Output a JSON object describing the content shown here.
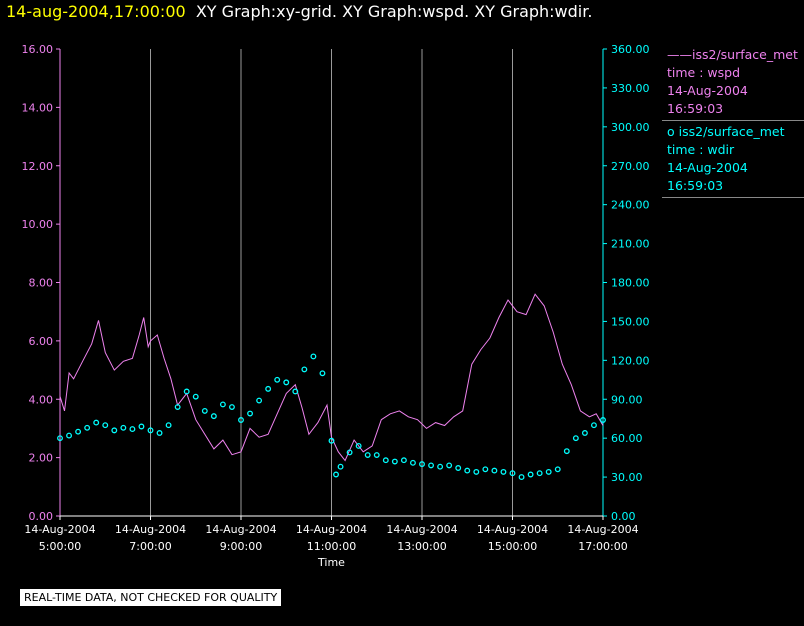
{
  "header": {
    "datetime": "14-aug-2004,17:00:00",
    "graphs": "XY Graph:xy-grid.  XY Graph:wspd.  XY Graph:wdir."
  },
  "legend": [
    {
      "name": "iss2/surface_met",
      "symbol": "——",
      "lines": [
        "time : wspd",
        "14-Aug-2004",
        "16:59:03"
      ],
      "color": "#ee82ee"
    },
    {
      "name": "iss2/surface_met",
      "symbol": "o",
      "lines": [
        "time : wdir",
        "14-Aug-2004",
        "16:59:03"
      ],
      "color": "#00ffff"
    }
  ],
  "footer_note": "REAL-TIME DATA, NOT CHECKED FOR QUALITY",
  "colors": {
    "wspd": "#ee82ee",
    "wdir": "#00ffff",
    "grid": "#9a9a9a",
    "axis": "#ffffff",
    "header_time": "#ffff00"
  },
  "chart_data": {
    "type": "line",
    "xlabel": "Time",
    "x_ticks": [
      [
        "14-Aug-2004",
        "5:00:00"
      ],
      [
        "14-Aug-2004",
        "7:00:00"
      ],
      [
        "14-Aug-2004",
        "9:00:00"
      ],
      [
        "14-Aug-2004",
        "11:00:00"
      ],
      [
        "14-Aug-2004",
        "13:00:00"
      ],
      [
        "14-Aug-2004",
        "15:00:00"
      ],
      [
        "14-Aug-2004",
        "17:00:00"
      ]
    ],
    "xlim_hours": [
      5.0,
      17.0
    ],
    "y_left": {
      "ticks": [
        "0.00",
        "2.00",
        "4.00",
        "6.00",
        "8.00",
        "10.00",
        "12.00",
        "14.00",
        "16.00"
      ],
      "ylim": [
        0,
        16
      ]
    },
    "y_right": {
      "ticks": [
        "0.00",
        "30.00",
        "60.00",
        "90.00",
        "120.00",
        "150.00",
        "180.00",
        "210.00",
        "240.00",
        "270.00",
        "300.00",
        "330.00",
        "360.00"
      ],
      "ylim": [
        0,
        360
      ]
    },
    "grid": "vertical",
    "series": [
      {
        "name": "wspd",
        "style": "line",
        "axis": "left",
        "x": [
          5.0,
          5.1,
          5.2,
          5.3,
          5.5,
          5.7,
          5.85,
          6.0,
          6.2,
          6.4,
          6.6,
          6.75,
          6.85,
          6.95,
          7.0,
          7.15,
          7.3,
          7.45,
          7.6,
          7.8,
          8.0,
          8.2,
          8.4,
          8.6,
          8.8,
          9.0,
          9.2,
          9.4,
          9.6,
          9.8,
          10.0,
          10.2,
          10.35,
          10.5,
          10.7,
          10.9,
          11.0,
          11.15,
          11.3,
          11.5,
          11.7,
          11.9,
          12.1,
          12.3,
          12.5,
          12.7,
          12.9,
          13.1,
          13.3,
          13.5,
          13.7,
          13.9,
          14.1,
          14.3,
          14.5,
          14.7,
          14.9,
          15.1,
          15.3,
          15.5,
          15.7,
          15.9,
          16.1,
          16.3,
          16.5,
          16.7,
          16.85,
          17.0
        ],
        "values": [
          4.1,
          3.6,
          4.9,
          4.7,
          5.3,
          5.9,
          6.7,
          5.6,
          5.0,
          5.3,
          5.4,
          6.2,
          6.8,
          5.8,
          6.0,
          6.2,
          5.4,
          4.7,
          3.8,
          4.2,
          3.3,
          2.8,
          2.3,
          2.6,
          2.1,
          2.2,
          3.0,
          2.7,
          2.8,
          3.5,
          4.2,
          4.5,
          3.7,
          2.8,
          3.2,
          3.8,
          2.7,
          2.2,
          1.9,
          2.6,
          2.2,
          2.4,
          3.3,
          3.5,
          3.6,
          3.4,
          3.3,
          3.0,
          3.2,
          3.1,
          3.4,
          3.6,
          5.2,
          5.7,
          6.1,
          6.8,
          7.4,
          7.0,
          6.9,
          7.6,
          7.2,
          6.3,
          5.2,
          4.5,
          3.6,
          3.4,
          3.5,
          3.1
        ]
      },
      {
        "name": "wdir",
        "style": "scatter",
        "axis": "right",
        "x": [
          5.0,
          5.2,
          5.4,
          5.6,
          5.8,
          6.0,
          6.2,
          6.4,
          6.6,
          6.8,
          7.0,
          7.2,
          7.4,
          7.6,
          7.8,
          8.0,
          8.2,
          8.4,
          8.6,
          8.8,
          9.0,
          9.2,
          9.4,
          9.6,
          9.8,
          10.0,
          10.2,
          10.4,
          10.6,
          10.8,
          11.0,
          11.1,
          11.2,
          11.4,
          11.6,
          11.8,
          12.0,
          12.2,
          12.4,
          12.6,
          12.8,
          13.0,
          13.2,
          13.4,
          13.6,
          13.8,
          14.0,
          14.2,
          14.4,
          14.6,
          14.8,
          15.0,
          15.2,
          15.4,
          15.6,
          15.8,
          16.0,
          16.2,
          16.4,
          16.6,
          16.8,
          17.0
        ],
        "values": [
          60,
          62,
          65,
          68,
          72,
          70,
          66,
          68,
          67,
          69,
          66,
          64,
          70,
          84,
          96,
          92,
          81,
          77,
          86,
          84,
          74,
          79,
          89,
          98,
          105,
          103,
          96,
          113,
          123,
          110,
          58,
          32,
          38,
          49,
          54,
          47,
          47,
          43,
          42,
          43,
          41,
          40,
          39,
          38,
          39,
          37,
          35,
          34,
          36,
          35,
          34,
          33,
          30,
          32,
          33,
          34,
          36,
          50,
          60,
          64,
          70,
          74
        ]
      }
    ]
  }
}
